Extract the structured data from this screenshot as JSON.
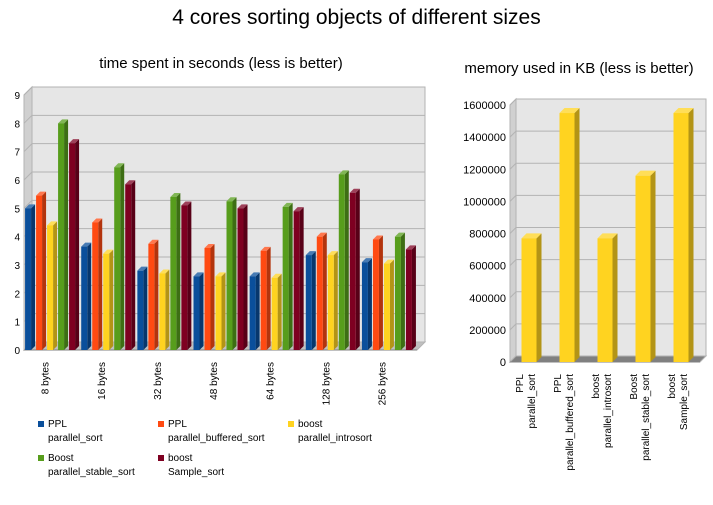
{
  "page": {
    "title": "4 cores sorting objects of different sizes"
  },
  "chart_data": [
    {
      "type": "bar",
      "title": "time spent in seconds (less is better)",
      "xlabel": "",
      "ylabel": "",
      "ylim": [
        0,
        9
      ],
      "yticks": [
        0,
        1,
        2,
        3,
        4,
        5,
        6,
        7,
        8,
        9
      ],
      "grid": true,
      "legend_position": "bottom",
      "categories": [
        "8 bytes",
        "16 bytes",
        "32 bytes",
        "48 bytes",
        "64 bytes",
        "128 bytes",
        "256 bytes"
      ],
      "series": [
        {
          "name": "PPL\nparallel_sort",
          "color": "#0a4f9b",
          "values": [
            5.0,
            3.65,
            2.8,
            2.6,
            2.6,
            3.35,
            3.1
          ]
        },
        {
          "name": "PPL\nparallel_buffered_sort",
          "color": "#ff4a12",
          "values": [
            5.45,
            4.5,
            3.75,
            3.6,
            3.5,
            4.0,
            3.9
          ]
        },
        {
          "name": "boost\nparallel_introsort",
          "color": "#ffd320",
          "values": [
            4.4,
            3.4,
            2.7,
            2.6,
            2.55,
            3.35,
            3.05
          ]
        },
        {
          "name": "Boost\nparallel_stable_sort",
          "color": "#579d1c",
          "values": [
            8.0,
            6.45,
            5.4,
            5.25,
            5.05,
            6.2,
            4.0
          ]
        },
        {
          "name": "boost\nSample_sort",
          "color": "#7e0021",
          "values": [
            7.3,
            5.85,
            5.1,
            5.0,
            4.9,
            5.55,
            3.55
          ]
        }
      ]
    },
    {
      "type": "bar",
      "title": "memory used in KB (less is better)",
      "xlabel": "",
      "ylabel": "",
      "ylim": [
        0,
        1600000
      ],
      "yticks": [
        0,
        200000,
        400000,
        600000,
        800000,
        1000000,
        1200000,
        1400000,
        1600000
      ],
      "grid": true,
      "categories": [
        "PPL\nparallel_sort",
        "PPL\nparallel_buffered_sort",
        "boost\nparallel_introsort",
        "Boost\nparallel_stable_sort",
        "boost\nSample_sort"
      ],
      "series": [
        {
          "color": "#ffd320",
          "values": [
            770000,
            1550000,
            770000,
            1160000,
            1550000
          ]
        }
      ]
    }
  ]
}
